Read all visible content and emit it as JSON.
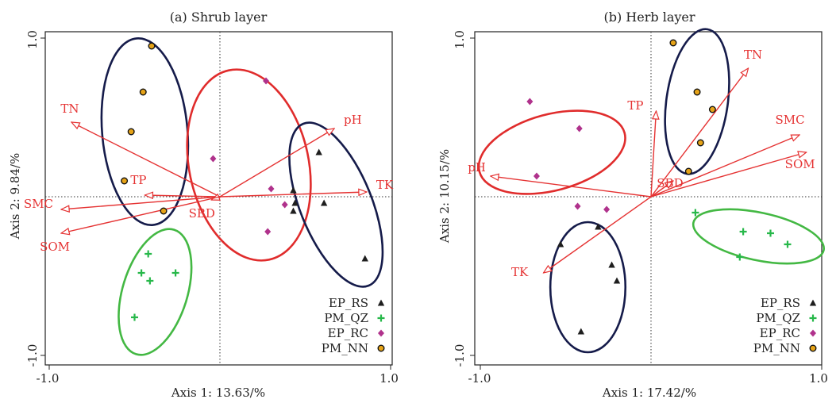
{
  "colors": {
    "vector": "#e53333",
    "EP_RS": "#1e1e1e",
    "PM_QZ": "#27b84a",
    "EP_RC": "#b0328c",
    "PM_NN": "#e6a317",
    "ellipse_navy": "#151b4a",
    "ellipse_red": "#e02c2c",
    "ellipse_green": "#43b843"
  },
  "chart_data": [
    {
      "type": "scatter",
      "title": "(a) Shrub layer",
      "xlabel": "Axis 1: 13.63/%",
      "ylabel": "Axis 2: 9.84/%",
      "xlim": [
        -1.0,
        1.0
      ],
      "ylim": [
        -1.0,
        1.0
      ],
      "xticks": [
        "-1.0",
        "1.0"
      ],
      "yticks": [
        "-1.0",
        "1.0"
      ],
      "reference_lines": {
        "x": 0,
        "y": 0,
        "style": "dotted"
      },
      "legend": {
        "position": "bottom-right",
        "entries": [
          {
            "label": "EP_RS",
            "group": "EP_RS"
          },
          {
            "label": "PM_QZ",
            "group": "PM_QZ"
          },
          {
            "label": "EP_RC",
            "group": "EP_RC"
          },
          {
            "label": "PM_NN",
            "group": "PM_NN"
          }
        ]
      },
      "vectors": [
        {
          "label": "TN",
          "x": -0.87,
          "y": 0.47
        },
        {
          "label": "pH",
          "x": 0.67,
          "y": 0.43
        },
        {
          "label": "TP",
          "x": -0.44,
          "y": 0.01
        },
        {
          "label": "TK",
          "x": 0.86,
          "y": 0.03
        },
        {
          "label": "SMC",
          "x": -0.93,
          "y": -0.08
        },
        {
          "label": "SBD",
          "x": -0.05,
          "y": -0.02
        },
        {
          "label": "SOM",
          "x": -0.93,
          "y": -0.23
        }
      ],
      "series": [
        {
          "name": "EP_RS",
          "marker": "triangle",
          "points": [
            [
              0.58,
              0.28
            ],
            [
              0.43,
              0.04
            ],
            [
              0.43,
              -0.09
            ],
            [
              0.44,
              -0.04
            ],
            [
              0.61,
              -0.04
            ],
            [
              0.85,
              -0.39
            ]
          ]
        },
        {
          "name": "PM_QZ",
          "marker": "plus",
          "points": [
            [
              -0.42,
              -0.36
            ],
            [
              -0.46,
              -0.48
            ],
            [
              -0.41,
              -0.53
            ],
            [
              -0.26,
              -0.48
            ],
            [
              -0.5,
              -0.76
            ]
          ]
        },
        {
          "name": "EP_RC",
          "marker": "diamond",
          "points": [
            [
              0.27,
              0.73
            ],
            [
              -0.04,
              0.24
            ],
            [
              0.3,
              0.05
            ],
            [
              0.38,
              -0.05
            ],
            [
              0.28,
              -0.22
            ]
          ]
        },
        {
          "name": "PM_NN",
          "marker": "dot",
          "points": [
            [
              -0.4,
              0.95
            ],
            [
              -0.45,
              0.66
            ],
            [
              -0.52,
              0.41
            ],
            [
              -0.56,
              0.1
            ],
            [
              -0.33,
              -0.09
            ]
          ]
        }
      ],
      "ellipses": [
        {
          "cx": -0.44,
          "cy": 0.41,
          "rx": 0.25,
          "ry": 0.59,
          "rot": -5,
          "color": "ellipse_navy"
        },
        {
          "cx": 0.17,
          "cy": 0.2,
          "rx": 0.35,
          "ry": 0.61,
          "rot": -12,
          "color": "ellipse_red"
        },
        {
          "cx": 0.68,
          "cy": -0.05,
          "rx": 0.21,
          "ry": 0.55,
          "rot": -22,
          "color": "ellipse_navy"
        },
        {
          "cx": -0.38,
          "cy": -0.6,
          "rx": 0.19,
          "ry": 0.41,
          "rot": 17,
          "color": "ellipse_green"
        }
      ]
    },
    {
      "type": "scatter",
      "title": "(b) Herb layer",
      "xlabel": "Axis 1: 17.42/%",
      "ylabel": "Axis 2: 10.15/%",
      "xlim": [
        -1.0,
        1.0
      ],
      "ylim": [
        -1.0,
        1.0
      ],
      "xticks": [
        "-1.0",
        "1.0"
      ],
      "yticks": [
        "-1.0",
        "1.0"
      ],
      "reference_lines": {
        "x": 0,
        "y": 0,
        "style": "dotted"
      },
      "legend": {
        "position": "bottom-right",
        "entries": [
          {
            "label": "EP_RS",
            "group": "EP_RS"
          },
          {
            "label": "PM_QZ",
            "group": "PM_QZ"
          },
          {
            "label": "EP_RC",
            "group": "EP_RC"
          },
          {
            "label": "PM_NN",
            "group": "PM_NN"
          }
        ]
      },
      "vectors": [
        {
          "label": "TN",
          "x": 0.57,
          "y": 0.81
        },
        {
          "label": "TP",
          "x": 0.03,
          "y": 0.54
        },
        {
          "label": "SMC",
          "x": 0.87,
          "y": 0.39
        },
        {
          "label": "SOM",
          "x": 0.91,
          "y": 0.28
        },
        {
          "label": "pH",
          "x": -0.94,
          "y": 0.13
        },
        {
          "label": "SBD",
          "x": 0.13,
          "y": 0.1
        },
        {
          "label": "TK",
          "x": -0.63,
          "y": -0.48
        }
      ],
      "series": [
        {
          "name": "EP_RS",
          "marker": "triangle",
          "points": [
            [
              -0.31,
              -0.19
            ],
            [
              -0.53,
              -0.3
            ],
            [
              -0.23,
              -0.43
            ],
            [
              -0.2,
              -0.53
            ],
            [
              -0.41,
              -0.85
            ]
          ]
        },
        {
          "name": "PM_QZ",
          "marker": "plus",
          "points": [
            [
              0.26,
              -0.1
            ],
            [
              0.54,
              -0.22
            ],
            [
              0.7,
              -0.23
            ],
            [
              0.8,
              -0.3
            ],
            [
              0.52,
              -0.38
            ]
          ]
        },
        {
          "name": "EP_RC",
          "marker": "diamond",
          "points": [
            [
              -0.71,
              0.6
            ],
            [
              -0.42,
              0.43
            ],
            [
              -0.67,
              0.13
            ],
            [
              -0.43,
              -0.06
            ],
            [
              -0.26,
              -0.08
            ]
          ]
        },
        {
          "name": "PM_NN",
          "marker": "dot",
          "points": [
            [
              0.13,
              0.97
            ],
            [
              0.27,
              0.66
            ],
            [
              0.36,
              0.55
            ],
            [
              0.29,
              0.34
            ],
            [
              0.22,
              0.16
            ]
          ]
        }
      ],
      "ellipses": [
        {
          "cx": -0.58,
          "cy": 0.28,
          "rx": 0.44,
          "ry": 0.24,
          "rot": -15,
          "color": "ellipse_red"
        },
        {
          "cx": 0.27,
          "cy": 0.6,
          "rx": 0.18,
          "ry": 0.46,
          "rot": 8,
          "color": "ellipse_navy"
        },
        {
          "cx": -0.37,
          "cy": -0.57,
          "rx": 0.22,
          "ry": 0.41,
          "rot": 0,
          "color": "ellipse_navy"
        },
        {
          "cx": 0.63,
          "cy": -0.25,
          "rx": 0.39,
          "ry": 0.15,
          "rot": 12,
          "color": "ellipse_green"
        }
      ]
    }
  ]
}
